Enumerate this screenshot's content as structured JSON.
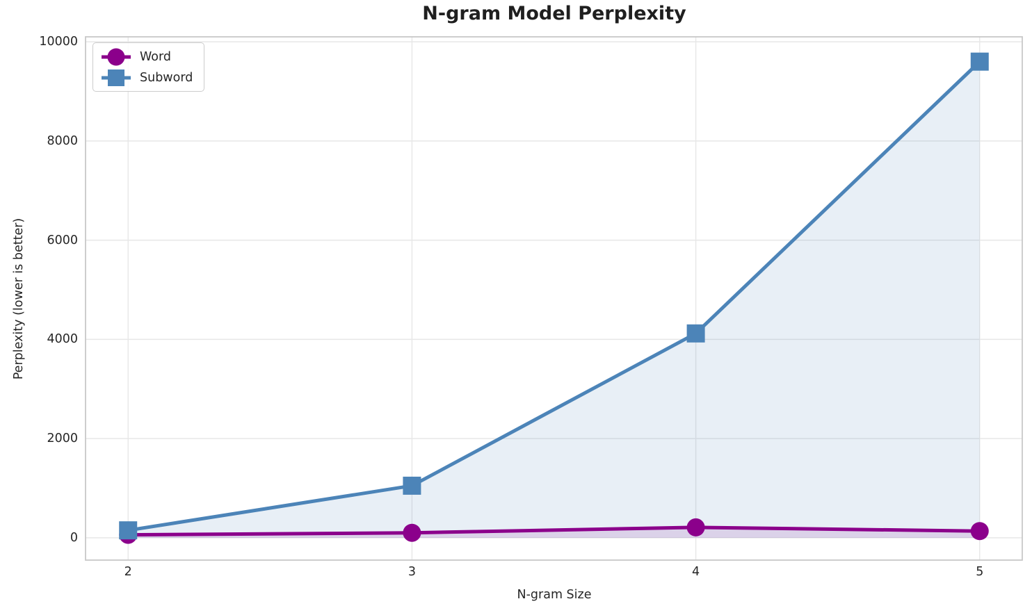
{
  "chart_data": {
    "type": "line",
    "title": "N-gram Model Perplexity",
    "xlabel": "N-gram Size",
    "ylabel": "Perplexity (lower is better)",
    "x": [
      2,
      3,
      4,
      5
    ],
    "series": [
      {
        "name": "Word",
        "values": [
          60,
          100,
          210,
          135
        ],
        "color": "#8B008B",
        "marker": "circle",
        "fill": true
      },
      {
        "name": "Subword",
        "values": [
          150,
          1050,
          4120,
          9600
        ],
        "color": "#4C84B8",
        "marker": "square",
        "fill": true
      }
    ],
    "xticks": [
      2,
      3,
      4,
      5
    ],
    "yticks": [
      0,
      2000,
      4000,
      6000,
      8000,
      10000
    ],
    "xlim": [
      1.85,
      5.15
    ],
    "ylim": [
      -450,
      10100
    ],
    "grid": true,
    "legend_position": "upper left",
    "fill_alpha": 0.13,
    "line_width": 5,
    "grid_color": "#e7e7e7",
    "spine_color": "#c8c8c8",
    "text_color": "#262626"
  }
}
